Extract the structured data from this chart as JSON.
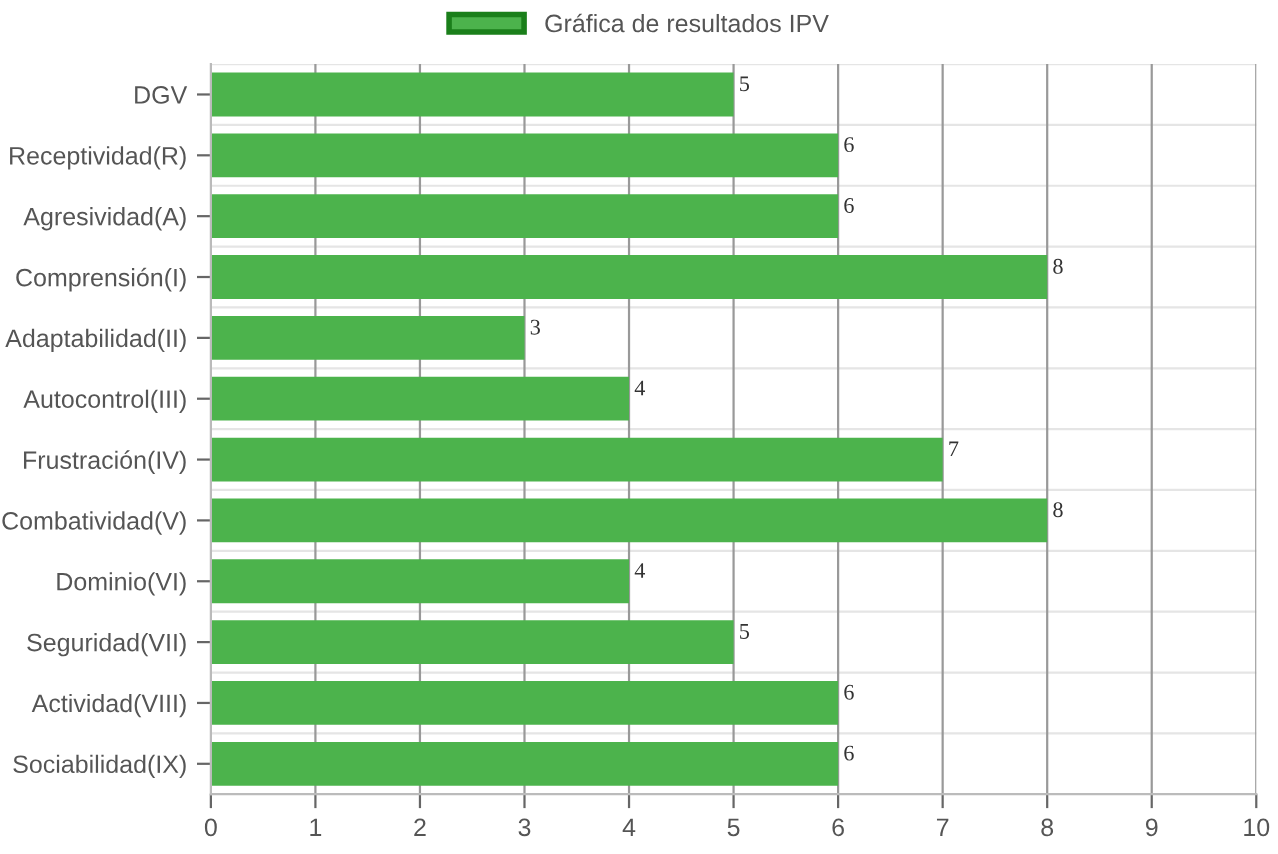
{
  "chart_data": {
    "type": "bar",
    "orientation": "horizontal",
    "categories": [
      "DGV",
      "Receptividad(R)",
      "Agresividad(A)",
      "Comprensión(I)",
      "Adaptabilidad(II)",
      "Autocontrol(III)",
      "Frustración(IV)",
      "Combatividad(V)",
      "Dominio(VI)",
      "Seguridad(VII)",
      "Actividad(VIII)",
      "Sociabilidad(IX)"
    ],
    "series": [
      {
        "name": "Gráfica de resultados IPV",
        "color": "#4cb34c",
        "values": [
          5,
          6,
          6,
          8,
          3,
          4,
          7,
          8,
          4,
          5,
          6,
          6
        ]
      }
    ],
    "xlim": [
      0,
      10
    ],
    "xticks": [
      0,
      1,
      2,
      3,
      4,
      5,
      6,
      7,
      8,
      9,
      10
    ],
    "grid": true,
    "legend": "top",
    "data_labels": true
  }
}
